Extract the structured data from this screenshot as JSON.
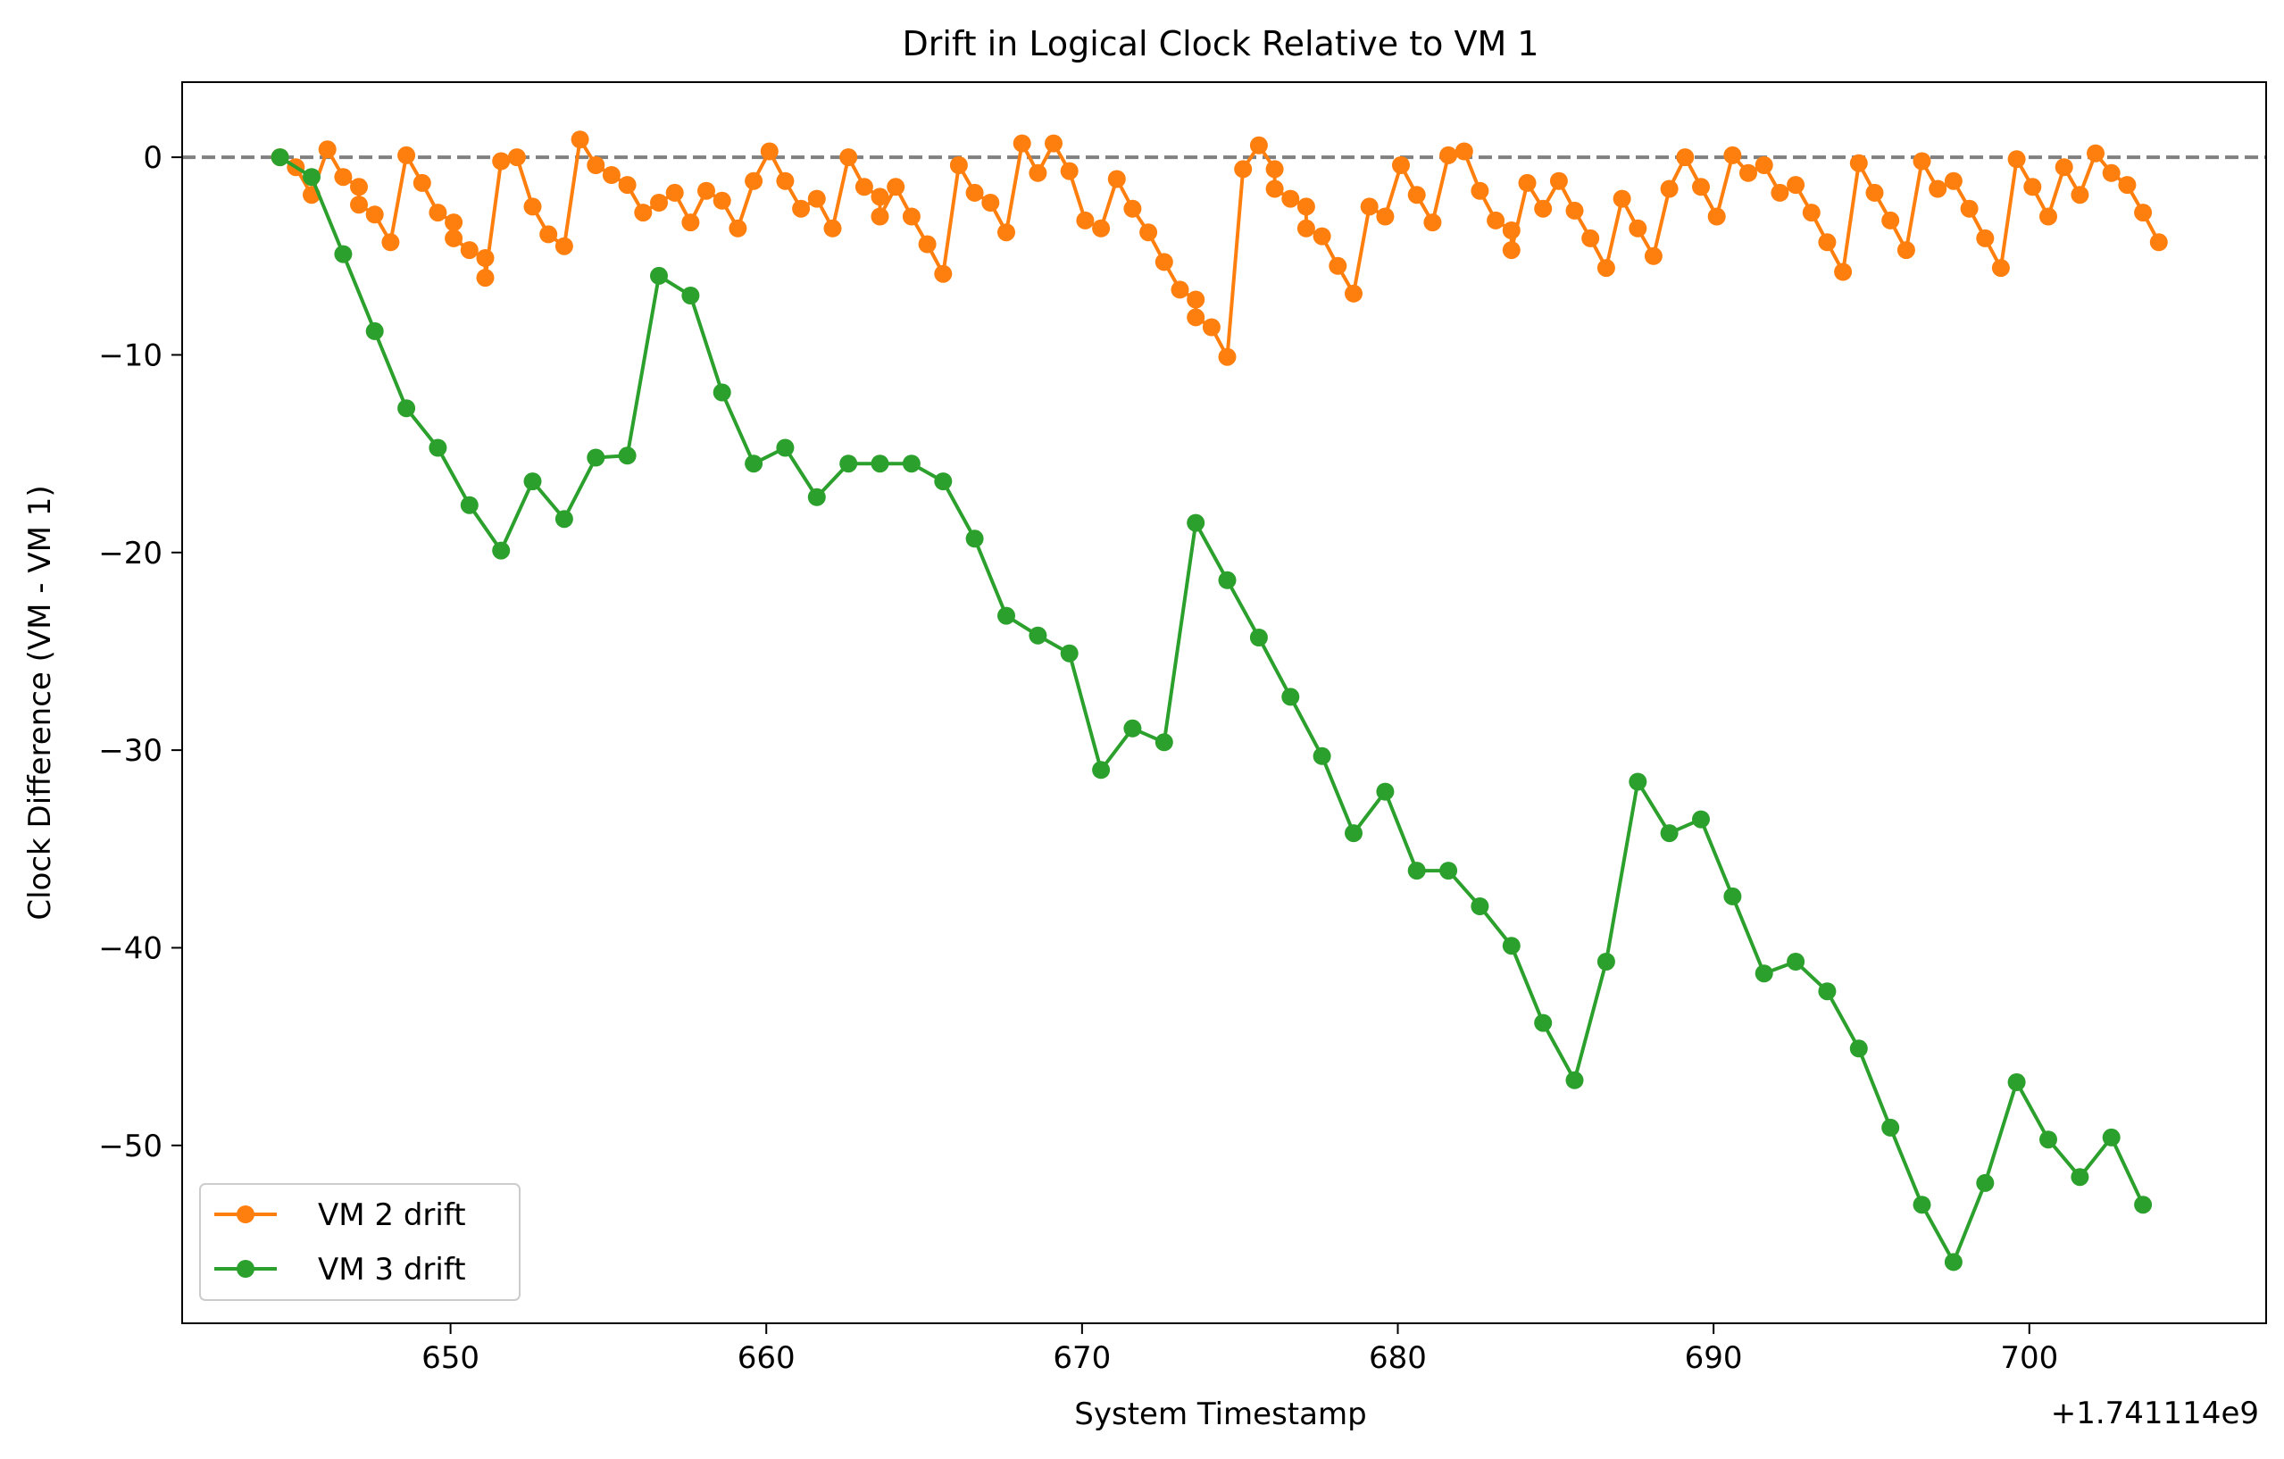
{
  "chart_data": {
    "type": "line",
    "title": "Drift in Logical Clock Relative to VM 1",
    "xlabel": "System Timestamp",
    "ylabel": "Clock Difference (VM - VM 1)",
    "x_offset_label": "+1.741114e9",
    "xlim": [
      641.5,
      707.5
    ],
    "ylim": [
      -59,
      3.8
    ],
    "xticks": [
      650,
      660,
      670,
      680,
      690,
      700
    ],
    "yticks": [
      0,
      -10,
      -20,
      -30,
      -40,
      -50
    ],
    "ytick_labels": [
      "0",
      "−10",
      "−20",
      "−30",
      "−40",
      "−50"
    ],
    "reference_line": {
      "y": 0,
      "style": "dashed",
      "color": "#808080"
    },
    "grid": false,
    "legend_position": "lower-left",
    "series": [
      {
        "name": "VM 2 drift",
        "color": "#ff7f0e",
        "points": [
          [
            644.6,
            0
          ],
          [
            645.1,
            -0.5
          ],
          [
            645.6,
            -1.9
          ],
          [
            646.1,
            0.4
          ],
          [
            646.6,
            -1
          ],
          [
            647.1,
            -1.5
          ],
          [
            647.1,
            -2.4
          ],
          [
            647.6,
            -2.9
          ],
          [
            648.1,
            -4.3
          ],
          [
            648.6,
            0.1
          ],
          [
            649.1,
            -1.3
          ],
          [
            649.6,
            -2.8
          ],
          [
            650.1,
            -3.3
          ],
          [
            650.1,
            -4.1
          ],
          [
            650.6,
            -4.7
          ],
          [
            651.1,
            -5.1
          ],
          [
            651.1,
            -6.1
          ],
          [
            651.6,
            -0.2
          ],
          [
            652.1,
            0
          ],
          [
            652.6,
            -2.5
          ],
          [
            653.1,
            -3.9
          ],
          [
            653.6,
            -4.5
          ],
          [
            654.1,
            0.9
          ],
          [
            654.6,
            -0.4
          ],
          [
            655.1,
            -0.9
          ],
          [
            655.6,
            -1.4
          ],
          [
            656.1,
            -2.8
          ],
          [
            656.6,
            -2.3
          ],
          [
            657.1,
            -1.8
          ],
          [
            657.6,
            -3.3
          ],
          [
            658.1,
            -1.7
          ],
          [
            658.6,
            -2.2
          ],
          [
            659.1,
            -3.6
          ],
          [
            659.6,
            -1.2
          ],
          [
            660.1,
            0.3
          ],
          [
            660.6,
            -1.2
          ],
          [
            661.1,
            -2.6
          ],
          [
            661.6,
            -2.1
          ],
          [
            662.1,
            -3.6
          ],
          [
            662.6,
            0
          ],
          [
            663.1,
            -1.5
          ],
          [
            663.6,
            -2
          ],
          [
            663.6,
            -3
          ],
          [
            664.1,
            -1.5
          ],
          [
            664.6,
            -3
          ],
          [
            665.1,
            -4.4
          ],
          [
            665.6,
            -5.9
          ],
          [
            666.1,
            -0.4
          ],
          [
            666.6,
            -1.8
          ],
          [
            667.1,
            -2.3
          ],
          [
            667.6,
            -3.8
          ],
          [
            668.1,
            0.7
          ],
          [
            668.6,
            -0.8
          ],
          [
            669.1,
            0.7
          ],
          [
            669.6,
            -0.7
          ],
          [
            670.1,
            -3.2
          ],
          [
            670.6,
            -3.6
          ],
          [
            671.1,
            -1.1
          ],
          [
            671.6,
            -2.6
          ],
          [
            672.1,
            -3.8
          ],
          [
            672.6,
            -5.3
          ],
          [
            673.1,
            -6.7
          ],
          [
            673.6,
            -7.2
          ],
          [
            673.6,
            -8.1
          ],
          [
            674.1,
            -8.6
          ],
          [
            674.6,
            -10.1
          ],
          [
            675.1,
            -0.6
          ],
          [
            675.6,
            0.6
          ],
          [
            676.1,
            -0.6
          ],
          [
            676.1,
            -1.6
          ],
          [
            676.6,
            -2.1
          ],
          [
            677.1,
            -2.5
          ],
          [
            677.1,
            -3.6
          ],
          [
            677.6,
            -4
          ],
          [
            678.1,
            -5.5
          ],
          [
            678.6,
            -6.9
          ],
          [
            679.1,
            -2.5
          ],
          [
            679.6,
            -3
          ],
          [
            680.1,
            -0.4
          ],
          [
            680.6,
            -1.9
          ],
          [
            681.1,
            -3.3
          ],
          [
            681.6,
            0.1
          ],
          [
            682.1,
            0.3
          ],
          [
            682.6,
            -1.7
          ],
          [
            683.1,
            -3.2
          ],
          [
            683.6,
            -3.7
          ],
          [
            683.6,
            -4.7
          ],
          [
            684.1,
            -1.3
          ],
          [
            684.6,
            -2.6
          ],
          [
            685.1,
            -1.2
          ],
          [
            685.6,
            -2.7
          ],
          [
            686.1,
            -4.1
          ],
          [
            686.6,
            -5.6
          ],
          [
            687.1,
            -2.1
          ],
          [
            687.6,
            -3.6
          ],
          [
            688.1,
            -5
          ],
          [
            688.6,
            -1.6
          ],
          [
            689.1,
            0
          ],
          [
            689.6,
            -1.5
          ],
          [
            690.1,
            -3
          ],
          [
            690.6,
            0.1
          ],
          [
            691.1,
            -0.8
          ],
          [
            691.6,
            -0.4
          ],
          [
            692.1,
            -1.8
          ],
          [
            692.6,
            -1.4
          ],
          [
            693.1,
            -2.8
          ],
          [
            693.6,
            -4.3
          ],
          [
            694.1,
            -5.8
          ],
          [
            694.6,
            -0.3
          ],
          [
            695.1,
            -1.8
          ],
          [
            695.6,
            -3.2
          ],
          [
            696.1,
            -4.7
          ],
          [
            696.6,
            -0.2
          ],
          [
            697.1,
            -1.6
          ],
          [
            697.6,
            -1.2
          ],
          [
            698.1,
            -2.6
          ],
          [
            698.6,
            -4.1
          ],
          [
            699.1,
            -5.6
          ],
          [
            699.6,
            -0.1
          ],
          [
            700.1,
            -1.5
          ],
          [
            700.6,
            -3
          ],
          [
            701.1,
            -0.5
          ],
          [
            701.6,
            -1.9
          ],
          [
            702.1,
            0.2
          ],
          [
            702.6,
            -0.8
          ],
          [
            703.1,
            -1.4
          ],
          [
            703.6,
            -2.8
          ],
          [
            704.1,
            -4.3
          ]
        ]
      },
      {
        "name": "VM 3 drift",
        "color": "#2ca02c",
        "points": [
          [
            644.6,
            0
          ],
          [
            645.6,
            -1
          ],
          [
            646.6,
            -4.9
          ],
          [
            647.6,
            -8.8
          ],
          [
            648.6,
            -12.7
          ],
          [
            649.6,
            -14.7
          ],
          [
            650.6,
            -17.6
          ],
          [
            651.6,
            -19.9
          ],
          [
            652.6,
            -16.4
          ],
          [
            653.6,
            -18.3
          ],
          [
            654.6,
            -15.2
          ],
          [
            655.6,
            -15.1
          ],
          [
            656.6,
            -6
          ],
          [
            657.6,
            -7
          ],
          [
            658.6,
            -11.9
          ],
          [
            659.6,
            -15.5
          ],
          [
            660.6,
            -14.7
          ],
          [
            661.6,
            -17.2
          ],
          [
            662.6,
            -15.5
          ],
          [
            663.6,
            -15.5
          ],
          [
            664.6,
            -15.5
          ],
          [
            665.6,
            -16.4
          ],
          [
            666.6,
            -19.3
          ],
          [
            667.6,
            -23.2
          ],
          [
            668.6,
            -24.2
          ],
          [
            669.6,
            -25.1
          ],
          [
            670.6,
            -31
          ],
          [
            671.6,
            -28.9
          ],
          [
            672.6,
            -29.6
          ],
          [
            673.6,
            -18.5
          ],
          [
            674.6,
            -21.4
          ],
          [
            675.6,
            -24.3
          ],
          [
            676.6,
            -27.3
          ],
          [
            677.6,
            -30.3
          ],
          [
            678.6,
            -34.2
          ],
          [
            679.6,
            -32.1
          ],
          [
            680.6,
            -36.1
          ],
          [
            681.6,
            -36.1
          ],
          [
            682.6,
            -37.9
          ],
          [
            683.6,
            -39.9
          ],
          [
            684.6,
            -43.8
          ],
          [
            685.6,
            -46.7
          ],
          [
            686.6,
            -40.7
          ],
          [
            687.6,
            -31.6
          ],
          [
            688.6,
            -34.2
          ],
          [
            689.6,
            -33.5
          ],
          [
            690.6,
            -37.4
          ],
          [
            691.6,
            -41.3
          ],
          [
            692.6,
            -40.7
          ],
          [
            693.6,
            -42.2
          ],
          [
            694.6,
            -45.1
          ],
          [
            695.6,
            -49.1
          ],
          [
            696.6,
            -53
          ],
          [
            697.6,
            -55.9
          ],
          [
            698.6,
            -51.9
          ],
          [
            699.6,
            -46.8
          ],
          [
            700.6,
            -49.7
          ],
          [
            701.6,
            -51.6
          ],
          [
            702.6,
            -49.6
          ],
          [
            703.6,
            -53
          ]
        ]
      }
    ]
  }
}
